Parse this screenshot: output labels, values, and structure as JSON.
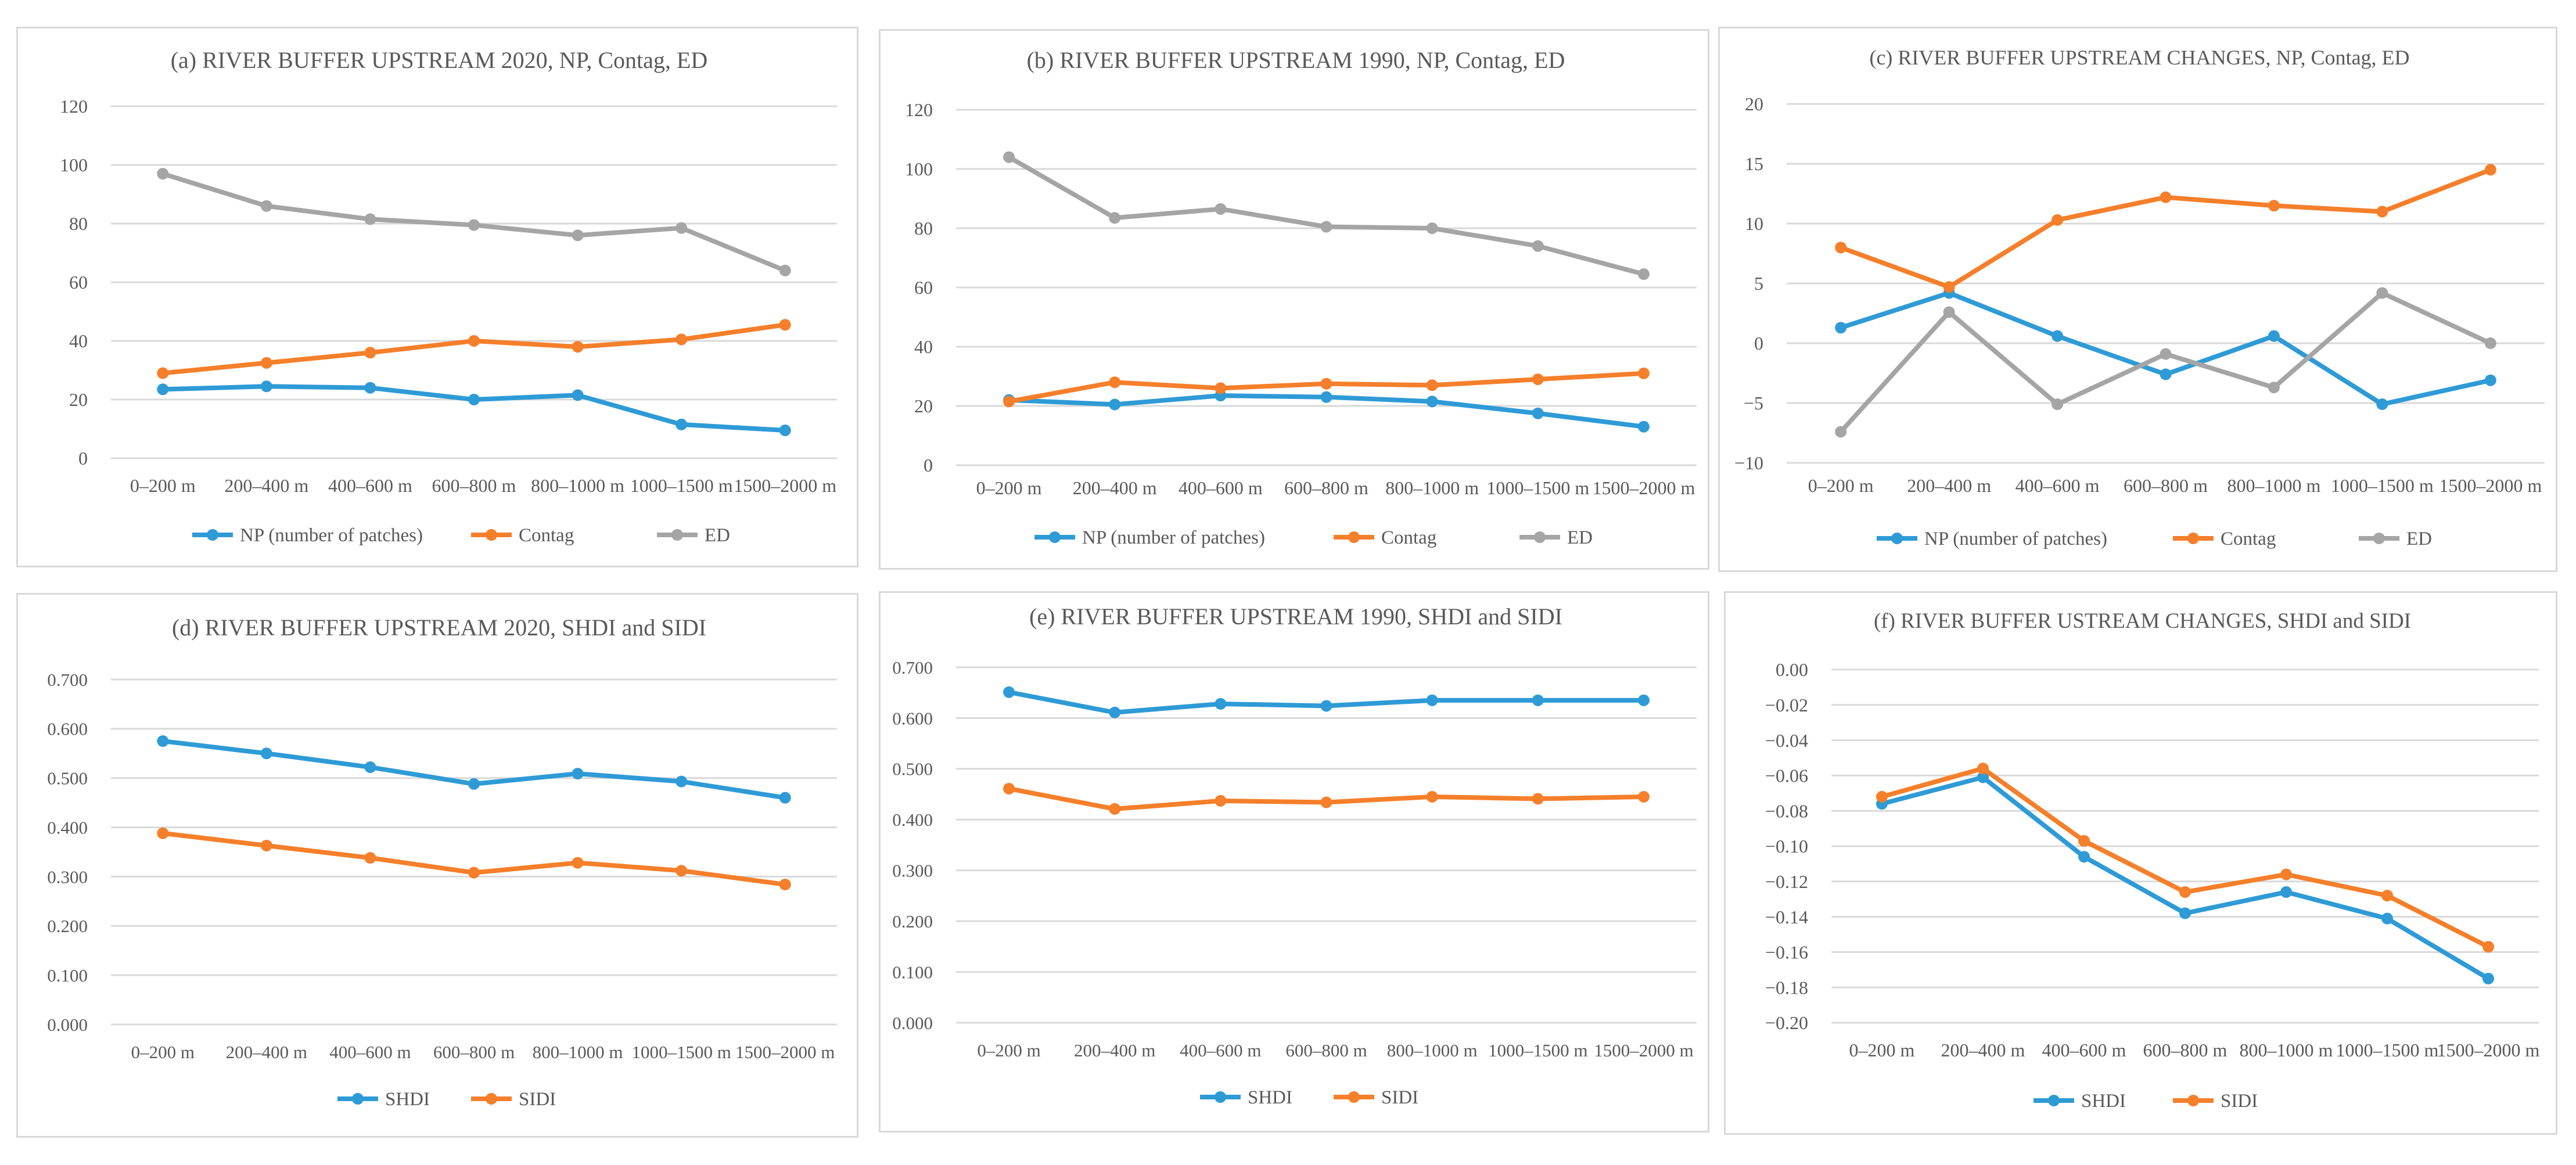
{
  "chart_data": [
    {
      "id": "a",
      "type": "line",
      "title": "(a) RIVER BUFFER UPSTREAM 2020, NP, Contag, ED",
      "categories": [
        "0–200 m",
        "200–400 m",
        "400–600 m",
        "600–800 m",
        "800–1000 m",
        "1000–1500 m",
        "1500–2000 m"
      ],
      "ylim": [
        0,
        120
      ],
      "yticks": [
        "0",
        "20",
        "40",
        "60",
        "80",
        "100",
        "120"
      ],
      "grid": true,
      "legend_position": "bottom",
      "series": [
        {
          "name": "NP (number of patches)",
          "color": "#2e9bd6",
          "values": [
            23.5,
            24.5,
            24,
            20,
            21.5,
            11.5,
            9.5
          ]
        },
        {
          "name": "Contag",
          "color": "#f57f2a",
          "values": [
            29,
            32.5,
            36,
            40,
            38,
            40.5,
            45.5
          ]
        },
        {
          "name": "ED",
          "color": "#a5a5a5",
          "values": [
            97,
            86,
            81.5,
            79.5,
            76,
            78.5,
            64
          ]
        }
      ]
    },
    {
      "id": "b",
      "type": "line",
      "title": "(b) RIVER BUFFER UPSTREAM 1990,  NP, Contag, ED",
      "categories": [
        "0–200 m",
        "200–400 m",
        "400–600 m",
        "600–800 m",
        "800–1000 m",
        "1000–1500 m",
        "1500–2000 m"
      ],
      "ylim": [
        0,
        120
      ],
      "yticks": [
        "0",
        "20",
        "40",
        "60",
        "80",
        "100",
        "120"
      ],
      "grid": true,
      "legend_position": "bottom",
      "series": [
        {
          "name": "NP (number of patches)",
          "color": "#2e9bd6",
          "values": [
            22,
            20.5,
            23.5,
            23,
            21.5,
            17.5,
            13
          ]
        },
        {
          "name": "Contag",
          "color": "#f57f2a",
          "values": [
            21.5,
            28,
            26,
            27.5,
            27,
            29,
            31
          ]
        },
        {
          "name": "ED",
          "color": "#a5a5a5",
          "values": [
            104,
            83.5,
            86.5,
            80.5,
            80,
            74,
            64.5
          ]
        }
      ]
    },
    {
      "id": "c",
      "type": "line",
      "title": "(c) RIVER BUFFER UPSTREAM  CHANGES,  NP, Contag, ED",
      "categories": [
        "0–200 m",
        "200–400 m",
        "400–600 m",
        "600–800 m",
        "800–1000 m",
        "1000–1500 m",
        "1500–2000 m"
      ],
      "ylim": [
        -10,
        20
      ],
      "yticks": [
        "−10",
        "−5",
        "0",
        "5",
        "10",
        "15",
        "20"
      ],
      "grid": true,
      "legend_position": "bottom",
      "series": [
        {
          "name": "NP (number of patches)",
          "color": "#2e9bd6",
          "values": [
            1.3,
            4.2,
            0.6,
            -2.6,
            0.6,
            -5.1,
            -3.1
          ]
        },
        {
          "name": "Contag",
          "color": "#f57f2a",
          "values": [
            8,
            4.7,
            10.3,
            12.2,
            11.5,
            11,
            14.5
          ]
        },
        {
          "name": "ED",
          "color": "#a5a5a5",
          "values": [
            -7.4,
            2.6,
            -5.1,
            -0.9,
            -3.7,
            4.2,
            0
          ]
        }
      ]
    },
    {
      "id": "d",
      "type": "line",
      "title": "(d) RIVER BUFFER UPSTREAM 2020, SHDI and SIDI",
      "categories": [
        "0–200 m",
        "200–400 m",
        "400–600 m",
        "600–800 m",
        "800–1000 m",
        "1000–1500 m",
        "1500–2000 m"
      ],
      "ylim": [
        0,
        0.7
      ],
      "yticks": [
        "0.000",
        "0.100",
        "0.200",
        "0.300",
        "0.400",
        "0.500",
        "0.600",
        "0.700"
      ],
      "grid": true,
      "legend_position": "bottom",
      "series": [
        {
          "name": "SHDI",
          "color": "#2e9bd6",
          "values": [
            0.575,
            0.55,
            0.522,
            0.488,
            0.509,
            0.493,
            0.46
          ]
        },
        {
          "name": "SIDI",
          "color": "#f57f2a",
          "values": [
            0.388,
            0.363,
            0.338,
            0.308,
            0.328,
            0.312,
            0.284
          ]
        }
      ]
    },
    {
      "id": "e",
      "type": "line",
      "title": "(e) RIVER BUFFER UPSTREAM 1990, SHDI and SIDI",
      "categories": [
        "0–200 m",
        "200–400 m",
        "400–600 m",
        "600–800 m",
        "800–1000 m",
        "1000–1500 m",
        "1500–2000 m"
      ],
      "ylim": [
        0,
        0.7
      ],
      "yticks": [
        "0.000",
        "0.100",
        "0.200",
        "0.300",
        "0.400",
        "0.500",
        "0.600",
        "0.700"
      ],
      "grid": true,
      "legend_position": "bottom",
      "series": [
        {
          "name": "SHDI",
          "color": "#2e9bd6",
          "values": [
            0.651,
            0.611,
            0.628,
            0.624,
            0.635,
            0.635,
            0.635
          ]
        },
        {
          "name": "SIDI",
          "color": "#f57f2a",
          "values": [
            0.461,
            0.421,
            0.437,
            0.434,
            0.445,
            0.441,
            0.445
          ]
        }
      ]
    },
    {
      "id": "f",
      "type": "line",
      "title": "(f) RIVER BUFFER USTREAM CHANGES, SHDI and SIDI",
      "categories": [
        "0–200 m",
        "200–400 m",
        "400–600 m",
        "600–800 m",
        "800–1000 m",
        "1000–1500 m",
        "1500–2000 m"
      ],
      "ylim": [
        -0.2,
        0
      ],
      "yticks": [
        "−0.20",
        "−0.18",
        "−0.16",
        "−0.14",
        "−0.12",
        "−0.10",
        "−0.08",
        "−0.06",
        "−0.04",
        "−0.02",
        "0.00"
      ],
      "grid": true,
      "legend_position": "bottom",
      "series": [
        {
          "name": "SHDI",
          "color": "#2e9bd6",
          "values": [
            -0.076,
            -0.061,
            -0.106,
            -0.138,
            -0.126,
            -0.141,
            -0.175
          ]
        },
        {
          "name": "SIDI",
          "color": "#f57f2a",
          "values": [
            -0.072,
            -0.056,
            -0.097,
            -0.126,
            -0.116,
            -0.128,
            -0.157
          ]
        }
      ]
    }
  ]
}
